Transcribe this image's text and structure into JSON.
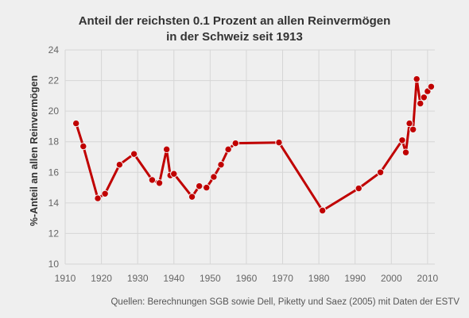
{
  "chart_data": {
    "type": "line",
    "title_lines": [
      "Anteil der reichsten 0.1 Prozent an allen Reinvermögen",
      "in der Schweiz seit 1913"
    ],
    "xlabel": "",
    "ylabel": "%-Anteil an allen Reinvermögen",
    "xlim": [
      1910,
      2012
    ],
    "ylim": [
      10,
      24
    ],
    "xticks": [
      1910,
      1920,
      1930,
      1940,
      1950,
      1960,
      1970,
      1980,
      1990,
      2000,
      2010
    ],
    "yticks": [
      10,
      12,
      14,
      16,
      18,
      20,
      22,
      24
    ],
    "grid": true,
    "line_color": "#c00000",
    "series": [
      {
        "x": [
          1913,
          1915,
          1919,
          1921,
          1925,
          1929,
          1934,
          1936,
          1938,
          1939,
          1940,
          1945,
          1947,
          1949,
          1951,
          1953,
          1955,
          1957,
          1969,
          1981,
          1991,
          1997,
          2003,
          2004,
          2005,
          2006,
          2007,
          2008,
          2009,
          2010,
          2011
        ],
        "y": [
          19.2,
          17.7,
          14.3,
          14.6,
          16.5,
          17.2,
          15.5,
          15.3,
          17.5,
          15.8,
          15.9,
          14.4,
          15.1,
          15.0,
          15.7,
          16.5,
          17.5,
          17.9,
          17.95,
          13.5,
          14.95,
          16.0,
          18.1,
          17.3,
          19.2,
          18.8,
          22.1,
          20.5,
          20.9,
          21.3,
          21.6
        ]
      }
    ]
  },
  "source_note": "Quellen: Berechnungen SGB sowie Dell, Piketty und Saez (2005) mit Daten der ESTV"
}
